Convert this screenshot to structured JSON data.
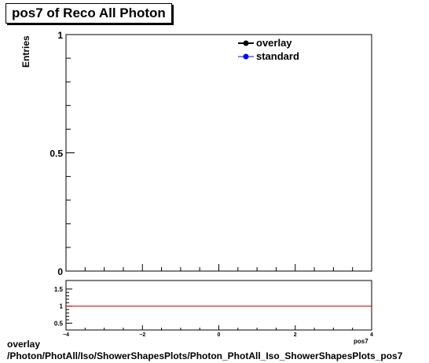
{
  "chart_data": [
    {
      "type": "line",
      "title": "pos7 of Reco All Photon",
      "ylabel": "Entries",
      "xlim": [
        -4,
        4
      ],
      "ylim": [
        0,
        1
      ],
      "yticks": [
        {
          "value": 0,
          "label": "0"
        },
        {
          "value": 0.5,
          "label": "0.5"
        },
        {
          "value": 1,
          "label": "1"
        }
      ],
      "series": [
        {
          "name": "overlay",
          "color": "#000000",
          "x": [],
          "y": []
        },
        {
          "name": "standard",
          "color": "#0000ff",
          "x": [],
          "y": []
        }
      ],
      "legend_position": "top-right",
      "grid": false
    },
    {
      "type": "line",
      "xlim": [
        -4,
        4
      ],
      "ylim": [
        0.3,
        1.75
      ],
      "xticks": [
        {
          "value": -4,
          "label": "−4"
        },
        {
          "value": -2,
          "label": "−2"
        },
        {
          "value": 0,
          "label": "0"
        },
        {
          "value": 2,
          "label": "2"
        },
        {
          "value": 4,
          "label": "4"
        }
      ],
      "yticks": [
        {
          "value": 0.5,
          "label": "0.5"
        },
        {
          "value": 1,
          "label": "1"
        },
        {
          "value": 1.5,
          "label": "1.5"
        }
      ],
      "xlabel_fragment": "pos7",
      "reference_line": {
        "y": 1,
        "color": "#cc0000"
      },
      "grid": false
    }
  ],
  "footer": {
    "line1": "overlay",
    "line2": "/Photon/PhotAll/Iso/ShowerShapesPlots/Photon_PhotAll_Iso_ShowerShapesPlots_pos7"
  }
}
